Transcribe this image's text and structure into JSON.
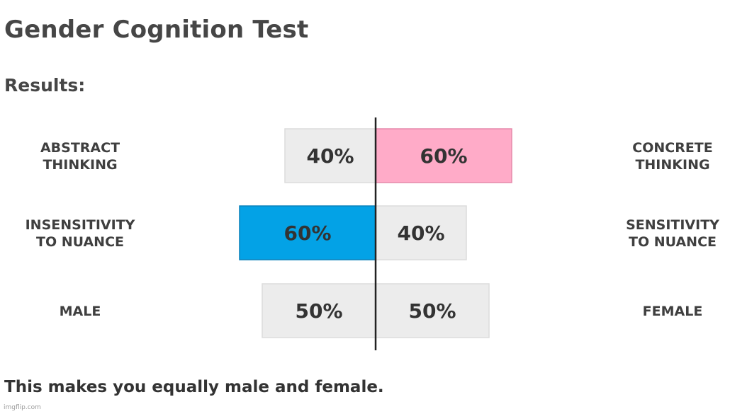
{
  "page": {
    "title": "Gender Cognition Test",
    "subtitle": "Results:",
    "footer": "This makes you equally male and female.",
    "watermark": "imgflip.com"
  },
  "colors": {
    "neutral_bar": "#ececec",
    "neutral_border": "#dcdcdc",
    "left_highlight": "#03a2e6",
    "left_highlight_border": "#0a82bc",
    "right_highlight": "#ffabc8",
    "right_highlight_border": "#e58aab",
    "axis": "#222222",
    "label": "#3f3f3f"
  },
  "chart_data": {
    "type": "bar",
    "orientation": "diverging-horizontal",
    "rows": [
      {
        "left_label": [
          "ABSTRACT",
          "THINKING"
        ],
        "right_label": [
          "CONCRETE",
          "THINKING"
        ],
        "left_value": 40,
        "right_value": 60,
        "left_text": "40%",
        "right_text": "60%",
        "highlight": "right"
      },
      {
        "left_label": [
          "INSENSITIVITY",
          "TO NUANCE"
        ],
        "right_label": [
          "SENSITIVITY",
          "TO NUANCE"
        ],
        "left_value": 60,
        "right_value": 40,
        "left_text": "60%",
        "right_text": "40%",
        "highlight": "left"
      },
      {
        "left_label": [
          "MALE"
        ],
        "right_label": [
          "FEMALE"
        ],
        "left_value": 50,
        "right_value": 50,
        "left_text": "50%",
        "right_text": "50%",
        "highlight": "none"
      }
    ]
  }
}
